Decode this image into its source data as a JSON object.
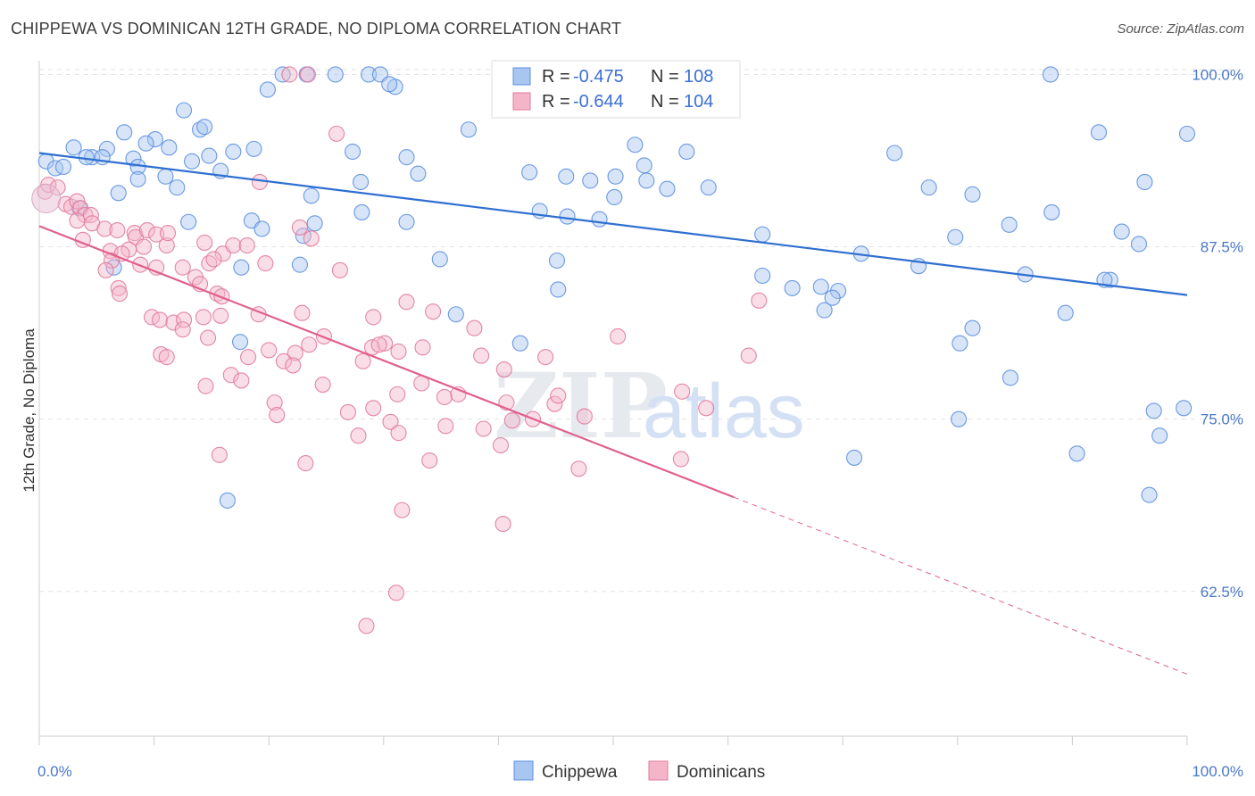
{
  "header": {
    "title": "CHIPPEWA VS DOMINICAN 12TH GRADE, NO DIPLOMA CORRELATION CHART",
    "source": "Source: ZipAtlas.com"
  },
  "watermark": {
    "zip": "ZIP",
    "atlas": "atlas"
  },
  "chart_data": {
    "type": "scatter",
    "ylabel": "12th Grade, No Diploma",
    "xlim": [
      0,
      100
    ],
    "ylim": [
      52,
      101
    ],
    "x_tick_labels": [
      "0.0%",
      "100.0%"
    ],
    "y_ticks": [
      100,
      87.5,
      75,
      62.5
    ],
    "y_tick_labels": [
      "100.0%",
      "87.5%",
      "75.0%",
      "62.5%"
    ],
    "grid": "horizontal dashed",
    "legend_position": "top-center",
    "legend": [
      {
        "r_label": "R = ",
        "r_value": "-0.475",
        "n_label": "N = ",
        "n_value": "108"
      },
      {
        "r_label": "R = ",
        "r_value": "-0.644",
        "n_label": "N = ",
        "n_value": "104"
      }
    ],
    "series": [
      {
        "name": "Chippewa",
        "color": "#5b8fe0",
        "fill": "#a9c6f0",
        "trend": {
          "x1": 0,
          "y1": 94.3,
          "x2": 100,
          "y2": 84.0,
          "dashed_from": null
        },
        "points": [
          [
            21.2,
            100
          ],
          [
            23.3,
            100
          ],
          [
            25.8,
            100
          ],
          [
            28.7,
            100
          ],
          [
            29.7,
            100
          ],
          [
            88.1,
            100
          ],
          [
            19.9,
            98.9
          ],
          [
            31.0,
            99.1
          ],
          [
            30.5,
            99.3
          ],
          [
            12.6,
            97.4
          ],
          [
            14.0,
            96.0
          ],
          [
            14.4,
            96.2
          ],
          [
            7.4,
            95.8
          ],
          [
            37.4,
            96.0
          ],
          [
            92.3,
            95.8
          ],
          [
            100,
            95.7
          ],
          [
            10.1,
            95.3
          ],
          [
            9.3,
            95.0
          ],
          [
            11.3,
            94.7
          ],
          [
            3.0,
            94.7
          ],
          [
            5.9,
            94.6
          ],
          [
            4.6,
            94.0
          ],
          [
            5.5,
            94.0
          ],
          [
            4.1,
            94.0
          ],
          [
            14.8,
            94.1
          ],
          [
            16.9,
            94.4
          ],
          [
            18.7,
            94.6
          ],
          [
            27.3,
            94.4
          ],
          [
            32.0,
            94.0
          ],
          [
            51.9,
            94.9
          ],
          [
            56.4,
            94.4
          ],
          [
            74.5,
            94.3
          ],
          [
            0.6,
            93.7
          ],
          [
            1.4,
            93.2
          ],
          [
            2.1,
            93.3
          ],
          [
            8.2,
            93.9
          ],
          [
            8.6,
            93.3
          ],
          [
            13.3,
            93.7
          ],
          [
            15.8,
            93.0
          ],
          [
            11.0,
            92.6
          ],
          [
            33.0,
            92.8
          ],
          [
            42.7,
            92.9
          ],
          [
            45.9,
            92.6
          ],
          [
            48.0,
            92.3
          ],
          [
            50.2,
            92.6
          ],
          [
            52.7,
            93.4
          ],
          [
            8.6,
            92.4
          ],
          [
            28.0,
            92.2
          ],
          [
            52.9,
            92.3
          ],
          [
            54.7,
            91.7
          ],
          [
            58.3,
            91.8
          ],
          [
            77.5,
            91.8
          ],
          [
            81.3,
            91.3
          ],
          [
            96.3,
            92.2
          ],
          [
            6.9,
            91.4
          ],
          [
            12.0,
            91.8
          ],
          [
            23.7,
            91.2
          ],
          [
            50.1,
            91.1
          ],
          [
            3.5,
            90.3
          ],
          [
            43.6,
            90.1
          ],
          [
            46.0,
            89.7
          ],
          [
            48.8,
            89.5
          ],
          [
            28.1,
            90.0
          ],
          [
            84.5,
            89.1
          ],
          [
            88.2,
            90.0
          ],
          [
            13.0,
            89.3
          ],
          [
            18.5,
            89.4
          ],
          [
            24.0,
            89.2
          ],
          [
            32.0,
            89.3
          ],
          [
            94.3,
            88.6
          ],
          [
            23.0,
            88.3
          ],
          [
            19.4,
            88.8
          ],
          [
            63.0,
            88.4
          ],
          [
            79.8,
            88.2
          ],
          [
            95.8,
            87.7
          ],
          [
            34.9,
            86.6
          ],
          [
            45.1,
            86.5
          ],
          [
            71.6,
            87.0
          ],
          [
            6.5,
            86.0
          ],
          [
            17.6,
            86.0
          ],
          [
            22.7,
            86.2
          ],
          [
            63.0,
            85.4
          ],
          [
            76.6,
            86.1
          ],
          [
            85.9,
            85.5
          ],
          [
            93.3,
            85.1
          ],
          [
            92.8,
            85.1
          ],
          [
            45.2,
            84.4
          ],
          [
            68.1,
            84.6
          ],
          [
            69.6,
            84.3
          ],
          [
            69.1,
            83.8
          ],
          [
            65.6,
            84.5
          ],
          [
            68.4,
            82.9
          ],
          [
            89.4,
            82.7
          ],
          [
            36.3,
            82.6
          ],
          [
            81.3,
            81.6
          ],
          [
            41.9,
            80.5
          ],
          [
            80.2,
            80.5
          ],
          [
            84.6,
            78.0
          ],
          [
            99.7,
            75.8
          ],
          [
            97.1,
            75.6
          ],
          [
            80.1,
            75.0
          ],
          [
            97.6,
            73.8
          ],
          [
            90.4,
            72.5
          ],
          [
            71.0,
            72.2
          ],
          [
            96.7,
            69.5
          ],
          [
            16.4,
            69.1
          ],
          [
            17.5,
            80.6
          ]
        ]
      },
      {
        "name": "Dominicans",
        "color": "#e07a9c",
        "fill": "#f5b5c9",
        "trend": {
          "x1": 0,
          "y1": 89.0,
          "x2": 100,
          "y2": 56.5,
          "dashed_from": 60.5
        },
        "points": [
          [
            21.8,
            100
          ],
          [
            23.4,
            100
          ],
          [
            25.9,
            95.7
          ],
          [
            0.5,
            91.5
          ],
          [
            0.8,
            92.0
          ],
          [
            1.6,
            91.8
          ],
          [
            2.3,
            90.6
          ],
          [
            2.8,
            90.4
          ],
          [
            3.3,
            90.8
          ],
          [
            3.6,
            90.3
          ],
          [
            4.0,
            89.8
          ],
          [
            4.5,
            89.8
          ],
          [
            3.8,
            88.0
          ],
          [
            3.3,
            89.4
          ],
          [
            4.6,
            89.2
          ],
          [
            19.2,
            92.2
          ],
          [
            5.7,
            88.8
          ],
          [
            6.8,
            88.7
          ],
          [
            8.3,
            88.5
          ],
          [
            8.4,
            88.2
          ],
          [
            7.8,
            87.3
          ],
          [
            9.4,
            88.7
          ],
          [
            10.2,
            88.4
          ],
          [
            9.1,
            87.5
          ],
          [
            11.1,
            87.6
          ],
          [
            11.2,
            88.5
          ],
          [
            6.2,
            87.2
          ],
          [
            7.2,
            87.0
          ],
          [
            6.3,
            86.5
          ],
          [
            14.4,
            87.8
          ],
          [
            16.0,
            87.0
          ],
          [
            16.9,
            87.6
          ],
          [
            18.1,
            87.6
          ],
          [
            22.7,
            88.9
          ],
          [
            23.7,
            88.1
          ],
          [
            8.8,
            86.2
          ],
          [
            10.2,
            86.0
          ],
          [
            12.5,
            86.0
          ],
          [
            14.8,
            86.3
          ],
          [
            15.2,
            86.6
          ],
          [
            19.7,
            86.3
          ],
          [
            13.6,
            85.3
          ],
          [
            26.2,
            85.8
          ],
          [
            14.0,
            84.8
          ],
          [
            5.8,
            85.8
          ],
          [
            6.9,
            84.5
          ],
          [
            15.5,
            84.1
          ],
          [
            15.9,
            83.9
          ],
          [
            7.0,
            84.1
          ],
          [
            9.8,
            82.4
          ],
          [
            10.5,
            82.2
          ],
          [
            11.7,
            82.0
          ],
          [
            12.6,
            82.2
          ],
          [
            14.3,
            82.4
          ],
          [
            15.8,
            82.5
          ],
          [
            19.1,
            82.6
          ],
          [
            22.9,
            82.7
          ],
          [
            32.0,
            83.5
          ],
          [
            34.3,
            82.8
          ],
          [
            29.1,
            82.4
          ],
          [
            37.9,
            81.6
          ],
          [
            12.5,
            81.5
          ],
          [
            24.8,
            81.0
          ],
          [
            23.5,
            80.4
          ],
          [
            14.7,
            80.9
          ],
          [
            33.4,
            80.2
          ],
          [
            29.0,
            80.2
          ],
          [
            30.1,
            80.5
          ],
          [
            22.3,
            79.8
          ],
          [
            29.6,
            80.4
          ],
          [
            31.3,
            79.9
          ],
          [
            10.6,
            79.7
          ],
          [
            11.1,
            79.5
          ],
          [
            18.2,
            79.5
          ],
          [
            20.0,
            80.0
          ],
          [
            21.3,
            79.2
          ],
          [
            22.1,
            78.9
          ],
          [
            28.2,
            79.2
          ],
          [
            38.5,
            79.6
          ],
          [
            40.5,
            78.6
          ],
          [
            44.1,
            79.5
          ],
          [
            16.7,
            78.2
          ],
          [
            17.6,
            77.8
          ],
          [
            14.5,
            77.4
          ],
          [
            24.7,
            77.5
          ],
          [
            33.3,
            77.6
          ],
          [
            31.2,
            76.8
          ],
          [
            35.3,
            76.6
          ],
          [
            20.5,
            76.2
          ],
          [
            20.7,
            75.3
          ],
          [
            26.9,
            75.5
          ],
          [
            29.1,
            75.8
          ],
          [
            40.7,
            76.2
          ],
          [
            44.9,
            76.1
          ],
          [
            36.5,
            76.8
          ],
          [
            41.2,
            74.9
          ],
          [
            43.0,
            75.0
          ],
          [
            47.5,
            75.2
          ],
          [
            38.7,
            74.3
          ],
          [
            30.6,
            74.8
          ],
          [
            35.4,
            74.5
          ],
          [
            31.3,
            74.0
          ],
          [
            27.8,
            73.8
          ],
          [
            40.2,
            73.1
          ],
          [
            15.7,
            72.4
          ],
          [
            23.2,
            71.8
          ],
          [
            34.0,
            72.0
          ],
          [
            47.0,
            71.4
          ],
          [
            55.9,
            72.1
          ],
          [
            31.6,
            68.4
          ],
          [
            40.4,
            67.4
          ],
          [
            31.1,
            62.4
          ],
          [
            28.5,
            60.0
          ],
          [
            50.4,
            81.0
          ],
          [
            56.0,
            77.0
          ],
          [
            45.2,
            76.7
          ],
          [
            58.1,
            75.8
          ],
          [
            62.7,
            83.6
          ],
          [
            61.8,
            79.6
          ]
        ]
      }
    ]
  },
  "bottom_legend": [
    {
      "label": "Chippewa"
    },
    {
      "label": "Dominicans"
    }
  ]
}
